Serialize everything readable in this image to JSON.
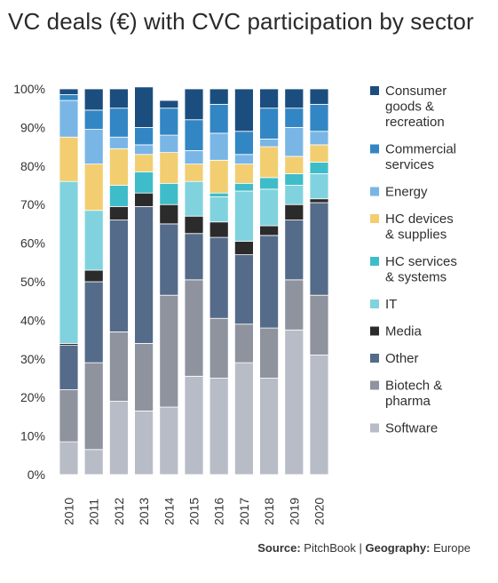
{
  "title": "VC deals (€) with CVC participation by sector",
  "source": {
    "source_label": "Source:",
    "source_value": "PitchBook",
    "separator": "|",
    "geography_label": "Geography:",
    "geography_value": "Europe"
  },
  "chart_data": {
    "type": "bar",
    "stacked": true,
    "percent_stacked": true,
    "title": "VC deals (€) with CVC participation by sector",
    "xlabel": "",
    "ylabel": "",
    "ylim": [
      0,
      100
    ],
    "y_ticks": [
      "0%",
      "10%",
      "20%",
      "30%",
      "40%",
      "50%",
      "60%",
      "70%",
      "80%",
      "90%",
      "100%"
    ],
    "grid": false,
    "legend_placement": "right",
    "categories": [
      "2010",
      "2011",
      "2012",
      "2013",
      "2014",
      "2015",
      "2016",
      "2017",
      "2018",
      "2019",
      "2020"
    ],
    "series": [
      {
        "name": "Software",
        "color": "#b8bcc6",
        "values": [
          8.5,
          6.5,
          19,
          16.5,
          17.5,
          25.5,
          25,
          29,
          25,
          37.5,
          31
        ]
      },
      {
        "name": "Biotech & pharma",
        "color": "#8e939e",
        "values": [
          13.5,
          22.5,
          18,
          17.5,
          29,
          25,
          15.5,
          10,
          13,
          13,
          15.5
        ]
      },
      {
        "name": "Other",
        "color": "#556b8a",
        "values": [
          11.5,
          21,
          29,
          35.5,
          18.5,
          12,
          21,
          18,
          24,
          15.5,
          24
        ]
      },
      {
        "name": "Media",
        "color": "#2b2b2b",
        "values": [
          0.5,
          3,
          3.5,
          3.5,
          5,
          4.5,
          4,
          3.5,
          2.5,
          4,
          1
        ]
      },
      {
        "name": "IT",
        "color": "#80d3de",
        "values": [
          42,
          15.5,
          0,
          0,
          0,
          9,
          6.5,
          13,
          9.5,
          5,
          6.5
        ]
      },
      {
        "name": "HC services & systems",
        "color": "#3fbcc9",
        "values": [
          0,
          0,
          5.5,
          5.5,
          5.5,
          0,
          1,
          2,
          3,
          3,
          3
        ]
      },
      {
        "name": "HC devices & supplies",
        "color": "#f2ce70",
        "values": [
          11.5,
          12,
          9.5,
          4.5,
          8,
          4.5,
          8.5,
          5,
          8,
          4.5,
          4.5
        ]
      },
      {
        "name": "Energy",
        "color": "#79b6e6",
        "values": [
          9.5,
          9,
          3,
          2.5,
          4.5,
          3.5,
          7,
          2.5,
          2,
          7.5,
          3.5
        ]
      },
      {
        "name": "Commercial services",
        "color": "#3386c4",
        "values": [
          1.5,
          5,
          7.5,
          4.5,
          7,
          8,
          7.5,
          6,
          8,
          5,
          7
        ]
      },
      {
        "name": "Consumer goods & recreation",
        "color": "#1b4e7e",
        "values": [
          1.5,
          5.5,
          5,
          10.5,
          2,
          8,
          4,
          11,
          5,
          5,
          4
        ]
      }
    ],
    "legend": [
      {
        "name": "Consumer goods & recreation",
        "lines": [
          "Consumer",
          "goods &",
          "recreation"
        ],
        "color": "#1b4e7e"
      },
      {
        "name": "Commercial services",
        "lines": [
          "Commercial",
          "services"
        ],
        "color": "#3386c4"
      },
      {
        "name": "Energy",
        "lines": [
          "Energy"
        ],
        "color": "#79b6e6"
      },
      {
        "name": "HC devices & supplies",
        "lines": [
          "HC devices",
          "& supplies"
        ],
        "color": "#f2ce70"
      },
      {
        "name": "HC services & systems",
        "lines": [
          "HC services",
          "& systems"
        ],
        "color": "#3fbcc9"
      },
      {
        "name": "IT",
        "lines": [
          "IT"
        ],
        "color": "#80d3de"
      },
      {
        "name": "Media",
        "lines": [
          "Media"
        ],
        "color": "#2b2b2b"
      },
      {
        "name": "Other",
        "lines": [
          "Other"
        ],
        "color": "#556b8a"
      },
      {
        "name": "Biotech & pharma",
        "lines": [
          "Biotech &",
          "pharma"
        ],
        "color": "#8e939e"
      },
      {
        "name": "Software",
        "lines": [
          "Software"
        ],
        "color": "#b8bcc6"
      }
    ]
  }
}
